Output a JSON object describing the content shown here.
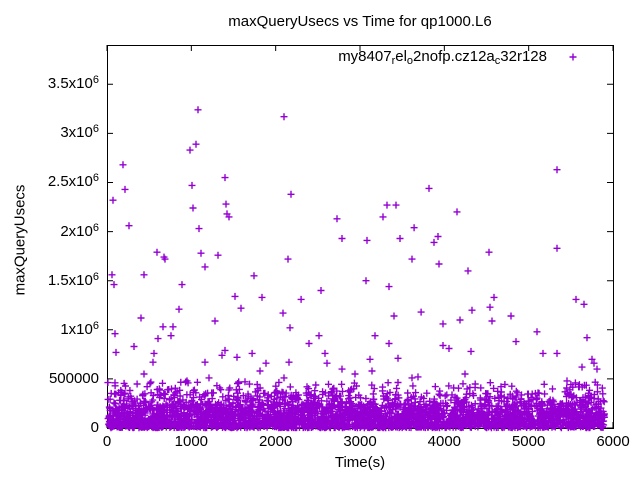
{
  "window": {
    "background": "#ffffff",
    "text_color": "#000000"
  },
  "chart_data": {
    "type": "scatter",
    "title": "maxQueryUsecs vs Time for qp1000.L6",
    "xlabel": "Time(s)",
    "ylabel": "maxQueryUsecs",
    "xlim": [
      0,
      6000
    ],
    "ylim": [
      0,
      3900000
    ],
    "x_ticks": [
      0,
      1000,
      2000,
      3000,
      4000,
      5000,
      6000
    ],
    "y_ticks": [
      {
        "v": 0,
        "label": "0"
      },
      {
        "v": 500000,
        "label": "500000"
      },
      {
        "v": 1000000,
        "label": "1x10",
        "sup": "6"
      },
      {
        "v": 1500000,
        "label": "1.5x10",
        "sup": "6"
      },
      {
        "v": 2000000,
        "label": "2x10",
        "sup": "6"
      },
      {
        "v": 2500000,
        "label": "2.5x10",
        "sup": "6"
      },
      {
        "v": 3000000,
        "label": "3x10",
        "sup": "6"
      },
      {
        "v": 3500000,
        "label": "3.5x10",
        "sup": "6"
      }
    ],
    "grid": false,
    "legend_position": "top-right-inside",
    "marker": "plus",
    "marker_color": "#9400d3",
    "border_color": "#000000",
    "series": [
      {
        "legend_parts": [
          {
            "text": "my8407"
          },
          {
            "sub": "r"
          },
          {
            "text": "el"
          },
          {
            "sub": "o"
          },
          {
            "text": "2nofp.cz12a"
          },
          {
            "sub": "c"
          },
          {
            "text": "32r128"
          }
        ],
        "outlier_points": [
          [
            1079,
            3240000
          ],
          [
            2099,
            3170000
          ],
          [
            1055,
            2890000
          ],
          [
            984,
            2830000
          ],
          [
            190,
            2680000
          ],
          [
            5336,
            2630000
          ],
          [
            1399,
            2550000
          ],
          [
            1008,
            2470000
          ],
          [
            3818,
            2440000
          ],
          [
            213,
            2430000
          ],
          [
            2182,
            2380000
          ],
          [
            71,
            2320000
          ],
          [
            1411,
            2280000
          ],
          [
            3320,
            2270000
          ],
          [
            3427,
            2270000
          ],
          [
            1020,
            2240000
          ],
          [
            4150,
            2200000
          ],
          [
            1423,
            2180000
          ],
          [
            1447,
            2150000
          ],
          [
            3273,
            2150000
          ],
          [
            2727,
            2130000
          ],
          [
            261,
            2060000
          ],
          [
            3641,
            2040000
          ],
          [
            1091,
            2030000
          ],
          [
            3925,
            1950000
          ],
          [
            2787,
            1930000
          ],
          [
            3474,
            1930000
          ],
          [
            3083,
            1910000
          ],
          [
            3878,
            1890000
          ],
          [
            5336,
            1830000
          ],
          [
            593,
            1790000
          ],
          [
            4530,
            1790000
          ],
          [
            1115,
            1780000
          ],
          [
            1316,
            1760000
          ],
          [
            676,
            1740000
          ],
          [
            2146,
            1720000
          ],
          [
            688,
            1720000
          ],
          [
            3617,
            1720000
          ],
          [
            3937,
            1670000
          ],
          [
            1162,
            1640000
          ],
          [
            4281,
            1600000
          ],
          [
            59,
            1560000
          ],
          [
            439,
            1560000
          ],
          [
            1743,
            1550000
          ],
          [
            3071,
            1500000
          ],
          [
            83,
            1460000
          ],
          [
            889,
            1460000
          ],
          [
            3344,
            1440000
          ],
          [
            2538,
            1400000
          ],
          [
            1518,
            1340000
          ],
          [
            1838,
            1330000
          ],
          [
            4589,
            1330000
          ],
          [
            2301,
            1310000
          ],
          [
            5561,
            1310000
          ],
          [
            5656,
            1260000
          ],
          [
            4542,
            1230000
          ],
          [
            1589,
            1220000
          ],
          [
            854,
            1210000
          ],
          [
            4328,
            1200000
          ],
          [
            3724,
            1180000
          ],
          [
            2087,
            1170000
          ],
          [
            3403,
            1140000
          ],
          [
            4791,
            1140000
          ],
          [
            403,
            1120000
          ],
          [
            4186,
            1100000
          ],
          [
            1281,
            1090000
          ],
          [
            4565,
            1090000
          ],
          [
            3984,
            1060000
          ],
          [
            664,
            1030000
          ],
          [
            783,
            1030000
          ],
          [
            2170,
            1020000
          ],
          [
            5099,
            980000
          ],
          [
            95,
            960000
          ],
          [
            759,
            940000
          ],
          [
            2514,
            940000
          ],
          [
            3178,
            940000
          ],
          [
            5692,
            920000
          ],
          [
            605,
            910000
          ],
          [
            4850,
            880000
          ],
          [
            2395,
            860000
          ],
          [
            3344,
            860000
          ],
          [
            3984,
            840000
          ],
          [
            320,
            830000
          ],
          [
            4055,
            810000
          ],
          [
            1399,
            790000
          ],
          [
            4316,
            780000
          ],
          [
            107,
            770000
          ],
          [
            557,
            760000
          ],
          [
            1720,
            760000
          ],
          [
            2585,
            760000
          ],
          [
            5170,
            760000
          ],
          [
            5336,
            760000
          ],
          [
            1364,
            740000
          ],
          [
            1542,
            720000
          ],
          [
            3451,
            710000
          ],
          [
            3119,
            700000
          ],
          [
            5751,
            700000
          ],
          [
            546,
            670000
          ],
          [
            1162,
            670000
          ],
          [
            2158,
            670000
          ],
          [
            1885,
            660000
          ],
          [
            2609,
            660000
          ],
          [
            5775,
            660000
          ],
          [
            5632,
            620000
          ],
          [
            2787,
            600000
          ],
          [
            5810,
            600000
          ],
          [
            1814,
            580000
          ],
          [
            3142,
            580000
          ],
          [
            2941,
            550000
          ],
          [
            439,
            550000
          ],
          [
            4245,
            550000
          ],
          [
            3617,
            510000
          ],
          [
            2099,
            510000
          ],
          [
            1210,
            510000
          ],
          [
            3688,
            520000
          ],
          [
            949,
            480000
          ],
          [
            5454,
            480000
          ],
          [
            1636,
            470000
          ],
          [
            95,
            460000
          ],
          [
            4221,
            450000
          ],
          [
            2372,
            420000
          ]
        ],
        "dense_band": {
          "description": "dense unlabeled cluster of samples hugging the x-axis below ~470000 usecs across 0-5900 s",
          "seed": 20240613,
          "count": 3200,
          "t_range": [
            0,
            5900
          ],
          "layers": [
            {
              "weight": 0.6,
              "v_min": 3000,
              "v_max": 140000,
              "bias": 1.35
            },
            {
              "weight": 0.26,
              "v_min": 140000,
              "v_max": 250000,
              "bias": 1.15
            },
            {
              "weight": 0.1,
              "v_min": 250000,
              "v_max": 360000,
              "bias": 1.0
            },
            {
              "weight": 0.04,
              "v_min": 360000,
              "v_max": 470000,
              "bias": 1.0
            }
          ]
        }
      }
    ]
  }
}
